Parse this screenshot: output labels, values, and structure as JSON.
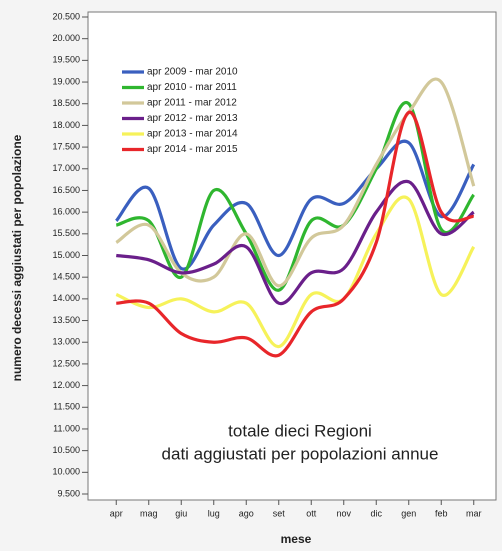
{
  "chart_data": {
    "type": "line",
    "title": "totale dieci Regioni",
    "subtitle": "dati aggiustati per popolazioni annue",
    "x_label": "mese",
    "y_label": "numero decessi aggiustati per popolazione",
    "categories": [
      "apr",
      "mag",
      "giu",
      "lug",
      "ago",
      "set",
      "ott",
      "nov",
      "dic",
      "gen",
      "feb",
      "mar"
    ],
    "series": [
      {
        "name": "apr 2009 - mar 2010",
        "color": "#3a5fbf",
        "values": [
          15800,
          16550,
          14700,
          15700,
          16200,
          15000,
          16300,
          16200,
          17000,
          17600,
          15900,
          17100
        ]
      },
      {
        "name": "apr 2010 - mar 2011",
        "color": "#2fb62f",
        "values": [
          15700,
          15800,
          14500,
          16500,
          15500,
          14200,
          15800,
          15700,
          17000,
          18500,
          15600,
          16400
        ]
      },
      {
        "name": "apr 2011 - mar 2012",
        "color": "#d2c89a",
        "values": [
          15300,
          15700,
          14600,
          14500,
          15500,
          14300,
          15400,
          15700,
          17100,
          18300,
          19000,
          16600
        ]
      },
      {
        "name": "apr 2012 - mar 2013",
        "color": "#6a1f8a",
        "values": [
          15000,
          14900,
          14600,
          14800,
          15200,
          13900,
          14600,
          14700,
          16000,
          16700,
          15500,
          16000
        ]
      },
      {
        "name": "apr 2013 - mar 2014",
        "color": "#f6f25a",
        "values": [
          14100,
          13800,
          14000,
          13700,
          13900,
          12900,
          14100,
          14000,
          15500,
          16300,
          14100,
          15200
        ]
      },
      {
        "name": "apr 2014 - mar 2015",
        "color": "#e8262a",
        "values": [
          13900,
          13900,
          13200,
          13000,
          13100,
          12700,
          13700,
          14000,
          15300,
          18300,
          16000,
          15900
        ]
      }
    ],
    "ylim": [
      9500,
      20500
    ],
    "yticks": [
      {
        "value": 9500,
        "label": "9.500"
      },
      {
        "value": 10000,
        "label": "10.000"
      },
      {
        "value": 10500,
        "label": "10.500"
      },
      {
        "value": 11000,
        "label": "11.000"
      },
      {
        "value": 11500,
        "label": "11.500"
      },
      {
        "value": 12000,
        "label": "12.000"
      },
      {
        "value": 12500,
        "label": "12.500"
      },
      {
        "value": 13000,
        "label": "13.000"
      },
      {
        "value": 13500,
        "label": "13.500"
      },
      {
        "value": 14000,
        "label": "14.000"
      },
      {
        "value": 14500,
        "label": "14.500"
      },
      {
        "value": 15000,
        "label": "15.000"
      },
      {
        "value": 15500,
        "label": "15.500"
      },
      {
        "value": 16000,
        "label": "16.000"
      },
      {
        "value": 16500,
        "label": "16.500"
      },
      {
        "value": 17000,
        "label": "17.000"
      },
      {
        "value": 17500,
        "label": "17.500"
      },
      {
        "value": 18000,
        "label": "18.000"
      },
      {
        "value": 18500,
        "label": "18.500"
      },
      {
        "value": 19000,
        "label": "19.000"
      },
      {
        "value": 19500,
        "label": "19.500"
      },
      {
        "value": 20000,
        "label": "20.000"
      },
      {
        "value": 20500,
        "label": "20.500"
      }
    ],
    "legend": "upper left",
    "grid": false
  }
}
